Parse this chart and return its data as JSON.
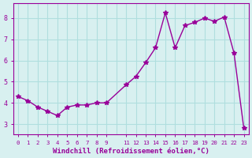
{
  "x": [
    0,
    1,
    2,
    3,
    4,
    5,
    6,
    7,
    8,
    9,
    11,
    12,
    13,
    14,
    15,
    16,
    17,
    18,
    19,
    20,
    21,
    22,
    23
  ],
  "y": [
    4.3,
    4.1,
    3.8,
    3.6,
    3.4,
    3.8,
    3.9,
    3.9,
    4.0,
    4.0,
    4.85,
    5.25,
    5.9,
    6.6,
    8.25,
    6.6,
    7.65,
    7.8,
    8.0,
    7.85,
    8.05,
    6.35,
    2.8
  ],
  "line_color": "#990099",
  "marker": "*",
  "marker_size": 4,
  "bg_color": "#d8f0f0",
  "grid_color": "#b0dede",
  "xlabel": "Windchill (Refroidissement éolien,°C)",
  "xlabel_color": "#990099",
  "tick_color": "#990099",
  "xlim": [
    -0.5,
    23.5
  ],
  "ylim": [
    2.5,
    8.7
  ],
  "yticks": [
    3,
    4,
    5,
    6,
    7,
    8
  ],
  "xticks": [
    0,
    1,
    2,
    3,
    4,
    5,
    6,
    7,
    8,
    9,
    11,
    12,
    13,
    14,
    15,
    16,
    17,
    18,
    19,
    20,
    21,
    22,
    23
  ],
  "xtick_labels": [
    "0",
    "1",
    "2",
    "3",
    "4",
    "5",
    "6",
    "7",
    "8",
    "9",
    "11",
    "12",
    "13",
    "14",
    "15",
    "16",
    "17",
    "18",
    "19",
    "20",
    "21",
    "22",
    "23"
  ]
}
